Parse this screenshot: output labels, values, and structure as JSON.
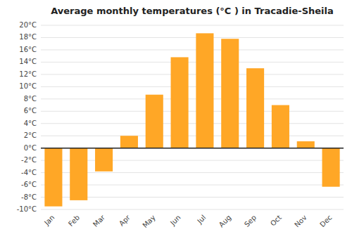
{
  "chart_data": {
    "type": "bar",
    "title": "Average monthly temperatures (°C ) in Tracadie-Sheila",
    "categories": [
      "Jan",
      "Feb",
      "Mar",
      "Apr",
      "May",
      "Jun",
      "Jul",
      "Aug",
      "Sep",
      "Oct",
      "Nov",
      "Dec"
    ],
    "values": [
      -9.5,
      -8.5,
      -3.8,
      2.0,
      8.7,
      14.8,
      18.7,
      17.8,
      13.0,
      7.0,
      1.1,
      -6.3
    ],
    "color": "#FFA726",
    "ylim": [
      -10,
      20
    ],
    "yticks": [
      {
        "value": -10,
        "label": "-10°C"
      },
      {
        "value": -8,
        "label": "-8°C"
      },
      {
        "value": -6,
        "label": "-6°C"
      },
      {
        "value": -4,
        "label": "-4°C"
      },
      {
        "value": -2,
        "label": "-2°C"
      },
      {
        "value": 0,
        "label": "0°C"
      },
      {
        "value": 2,
        "label": "2°C"
      },
      {
        "value": 4,
        "label": "4°C"
      },
      {
        "value": 6,
        "label": "6°C"
      },
      {
        "value": 8,
        "label": "8°C"
      },
      {
        "value": 10,
        "label": "10°C"
      },
      {
        "value": 12,
        "label": "12°C"
      },
      {
        "value": 14,
        "label": "14°C"
      },
      {
        "value": 16,
        "label": "16°C"
      },
      {
        "value": 18,
        "label": "18°C"
      },
      {
        "value": 20,
        "label": "20°C"
      }
    ],
    "grid": true
  }
}
